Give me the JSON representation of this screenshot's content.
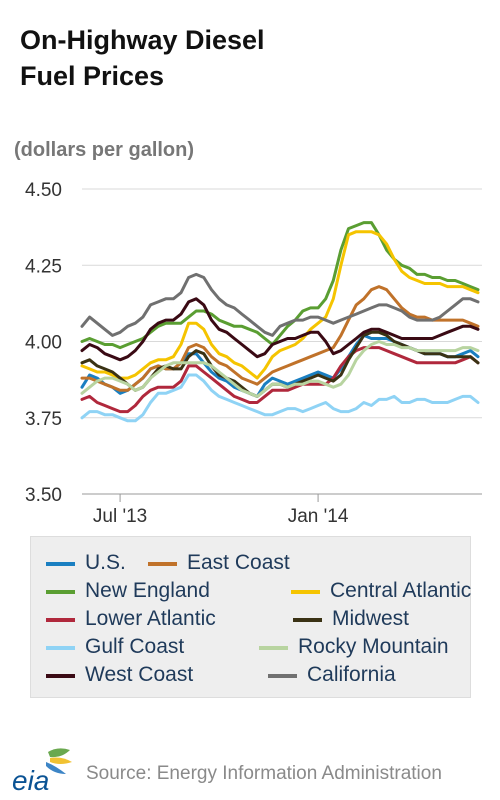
{
  "header": {
    "title_line1": "On-Highway Diesel",
    "title_line2": "Fuel Prices",
    "units": "(dollars per gallon)"
  },
  "footer": {
    "logo_text": "eia",
    "source": "Source: Energy Information Administration"
  },
  "chart_data": {
    "type": "line",
    "title": "On-Highway Diesel Fuel Prices",
    "ylabel": "(dollars per gallon)",
    "xlabel": "",
    "x_ticks": [
      {
        "label": "Jul '13",
        "week": 5
      },
      {
        "label": "Jan '14",
        "week": 31
      }
    ],
    "y_ticks": [
      "4.50",
      "4.25",
      "4.00",
      "3.75",
      "3.50"
    ],
    "ylim": [
      3.5,
      4.5
    ],
    "week_count": 53,
    "grid": "horizontal",
    "legend_position": "bottom",
    "series": [
      {
        "name": "U.S.",
        "color": "#1a7fc1",
        "values": [
          3.85,
          3.89,
          3.88,
          3.86,
          3.85,
          3.83,
          3.84,
          3.86,
          3.88,
          3.91,
          3.92,
          3.91,
          3.91,
          3.93,
          3.96,
          3.96,
          3.93,
          3.9,
          3.88,
          3.87,
          3.85,
          3.84,
          3.83,
          3.82,
          3.86,
          3.88,
          3.87,
          3.86,
          3.87,
          3.88,
          3.89,
          3.9,
          3.89,
          3.88,
          3.91,
          3.95,
          3.99,
          4.02,
          4.01,
          4.01,
          4.01,
          4.0,
          3.99,
          3.98,
          3.97,
          3.96,
          3.96,
          3.96,
          3.95,
          3.95,
          3.96,
          3.97,
          3.95
        ]
      },
      {
        "name": "East Coast",
        "color": "#c0722a",
        "values": [
          3.88,
          3.88,
          3.87,
          3.86,
          3.85,
          3.84,
          3.84,
          3.86,
          3.88,
          3.91,
          3.92,
          3.91,
          3.91,
          3.93,
          3.98,
          3.99,
          3.98,
          3.95,
          3.93,
          3.92,
          3.9,
          3.88,
          3.87,
          3.86,
          3.88,
          3.9,
          3.91,
          3.92,
          3.93,
          3.94,
          3.95,
          3.96,
          3.97,
          3.98,
          4.02,
          4.07,
          4.12,
          4.14,
          4.17,
          4.18,
          4.17,
          4.14,
          4.11,
          4.09,
          4.08,
          4.08,
          4.07,
          4.07,
          4.07,
          4.07,
          4.07,
          4.06,
          4.05
        ]
      },
      {
        "name": "New England",
        "color": "#5a9e32",
        "values": [
          4.0,
          4.01,
          4.0,
          3.99,
          3.99,
          3.98,
          3.99,
          4.0,
          4.01,
          4.03,
          4.05,
          4.06,
          4.06,
          4.06,
          4.08,
          4.1,
          4.1,
          4.09,
          4.07,
          4.06,
          4.05,
          4.05,
          4.04,
          4.03,
          4.01,
          3.99,
          4.02,
          4.05,
          4.07,
          4.1,
          4.11,
          4.11,
          4.14,
          4.2,
          4.3,
          4.37,
          4.38,
          4.39,
          4.39,
          4.35,
          4.3,
          4.27,
          4.25,
          4.24,
          4.22,
          4.22,
          4.21,
          4.21,
          4.2,
          4.2,
          4.19,
          4.18,
          4.17
        ]
      },
      {
        "name": "Central Atlantic",
        "color": "#f5c400",
        "values": [
          3.92,
          3.91,
          3.9,
          3.9,
          3.89,
          3.88,
          3.88,
          3.89,
          3.91,
          3.93,
          3.94,
          3.94,
          3.95,
          3.99,
          4.06,
          4.06,
          4.04,
          3.99,
          3.96,
          3.95,
          3.93,
          3.92,
          3.9,
          3.88,
          3.91,
          3.95,
          3.97,
          3.98,
          3.99,
          4.01,
          4.04,
          4.06,
          4.08,
          4.14,
          4.25,
          4.35,
          4.36,
          4.36,
          4.36,
          4.35,
          4.32,
          4.27,
          4.23,
          4.21,
          4.2,
          4.19,
          4.19,
          4.19,
          4.18,
          4.18,
          4.18,
          4.17,
          4.16
        ]
      },
      {
        "name": "Lower Atlantic",
        "color": "#b0283c",
        "values": [
          3.81,
          3.82,
          3.8,
          3.79,
          3.78,
          3.77,
          3.77,
          3.79,
          3.82,
          3.84,
          3.85,
          3.85,
          3.85,
          3.87,
          3.92,
          3.92,
          3.9,
          3.88,
          3.86,
          3.84,
          3.82,
          3.81,
          3.8,
          3.8,
          3.82,
          3.84,
          3.84,
          3.84,
          3.85,
          3.86,
          3.86,
          3.86,
          3.86,
          3.88,
          3.92,
          3.95,
          3.97,
          3.98,
          3.98,
          3.98,
          3.97,
          3.96,
          3.95,
          3.94,
          3.93,
          3.93,
          3.93,
          3.93,
          3.93,
          3.93,
          3.94,
          3.95,
          3.93
        ]
      },
      {
        "name": "Midwest",
        "color": "#3a3214",
        "values": [
          3.93,
          3.94,
          3.92,
          3.91,
          3.9,
          3.88,
          3.86,
          3.84,
          3.85,
          3.88,
          3.91,
          3.92,
          3.91,
          3.91,
          3.95,
          3.97,
          3.96,
          3.92,
          3.89,
          3.88,
          3.87,
          3.85,
          3.83,
          3.82,
          3.84,
          3.86,
          3.86,
          3.85,
          3.86,
          3.87,
          3.88,
          3.89,
          3.88,
          3.87,
          3.89,
          3.94,
          3.98,
          4.02,
          4.03,
          4.03,
          4.02,
          4.0,
          3.99,
          3.98,
          3.97,
          3.96,
          3.96,
          3.96,
          3.95,
          3.95,
          3.95,
          3.95,
          3.93
        ]
      },
      {
        "name": "Gulf Coast",
        "color": "#8fd3f5",
        "values": [
          3.75,
          3.77,
          3.77,
          3.76,
          3.76,
          3.75,
          3.74,
          3.74,
          3.76,
          3.8,
          3.83,
          3.83,
          3.84,
          3.85,
          3.89,
          3.89,
          3.87,
          3.84,
          3.82,
          3.81,
          3.8,
          3.79,
          3.78,
          3.77,
          3.76,
          3.76,
          3.77,
          3.78,
          3.78,
          3.77,
          3.78,
          3.79,
          3.8,
          3.78,
          3.77,
          3.77,
          3.78,
          3.8,
          3.79,
          3.81,
          3.81,
          3.82,
          3.8,
          3.8,
          3.81,
          3.81,
          3.8,
          3.8,
          3.8,
          3.81,
          3.82,
          3.82,
          3.8
        ]
      },
      {
        "name": "Rocky Mountain",
        "color": "#b8d4a0",
        "values": [
          3.83,
          3.85,
          3.87,
          3.88,
          3.88,
          3.87,
          3.86,
          3.84,
          3.85,
          3.88,
          3.9,
          3.92,
          3.93,
          3.93,
          3.93,
          3.93,
          3.93,
          3.92,
          3.9,
          3.88,
          3.86,
          3.84,
          3.83,
          3.82,
          3.84,
          3.86,
          3.86,
          3.85,
          3.86,
          3.86,
          3.87,
          3.87,
          3.86,
          3.85,
          3.86,
          3.89,
          3.94,
          3.97,
          3.99,
          4.0,
          3.99,
          3.99,
          3.98,
          3.98,
          3.97,
          3.97,
          3.97,
          3.97,
          3.97,
          3.97,
          3.98,
          3.98,
          3.97
        ]
      },
      {
        "name": "West Coast",
        "color": "#3a0a14",
        "values": [
          3.97,
          3.99,
          3.98,
          3.96,
          3.95,
          3.94,
          3.95,
          3.97,
          4.0,
          4.04,
          4.06,
          4.07,
          4.07,
          4.09,
          4.13,
          4.14,
          4.12,
          4.07,
          4.04,
          4.03,
          4.01,
          3.99,
          3.97,
          3.95,
          3.96,
          3.99,
          4.0,
          4.01,
          4.01,
          4.02,
          4.03,
          4.03,
          4.0,
          3.96,
          3.97,
          3.99,
          4.01,
          4.03,
          4.04,
          4.04,
          4.03,
          4.02,
          4.01,
          4.01,
          4.01,
          4.01,
          4.01,
          4.02,
          4.03,
          4.04,
          4.05,
          4.05,
          4.04
        ]
      },
      {
        "name": "California",
        "color": "#707070",
        "values": [
          4.05,
          4.08,
          4.06,
          4.04,
          4.02,
          4.03,
          4.05,
          4.06,
          4.08,
          4.12,
          4.13,
          4.14,
          4.14,
          4.16,
          4.21,
          4.22,
          4.21,
          4.17,
          4.14,
          4.12,
          4.11,
          4.09,
          4.07,
          4.05,
          4.03,
          4.02,
          4.05,
          4.06,
          4.07,
          4.07,
          4.08,
          4.08,
          4.07,
          4.06,
          4.07,
          4.08,
          4.09,
          4.1,
          4.11,
          4.12,
          4.12,
          4.11,
          4.1,
          4.08,
          4.07,
          4.07,
          4.07,
          4.08,
          4.1,
          4.12,
          4.14,
          4.14,
          4.13
        ]
      }
    ]
  }
}
